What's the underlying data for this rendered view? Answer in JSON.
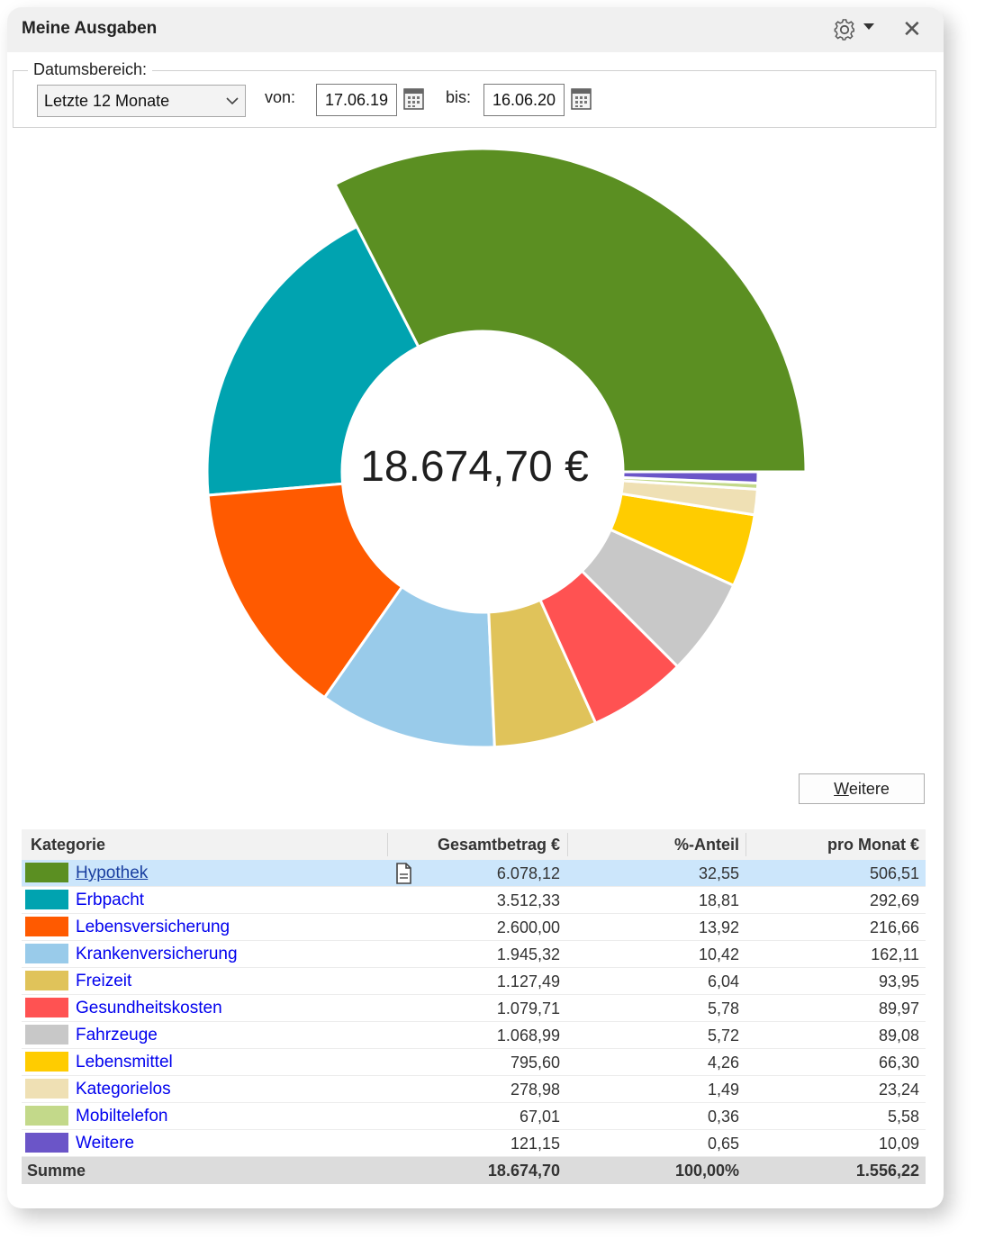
{
  "window": {
    "title": "Meine Ausgaben"
  },
  "filter": {
    "group_label": "Datumsbereich:",
    "range_value": "Letzte 12 Monate",
    "from_label": "von:",
    "from_value": "17.06.19",
    "to_label": "bis:",
    "to_value": "16.06.20"
  },
  "chart_data": {
    "type": "pie",
    "donut": true,
    "center_label": "18.674,70 €",
    "categories": [
      "Hypothek",
      "Erbpacht",
      "Lebensversicherung",
      "Krankenversicherung",
      "Freizeit",
      "Gesundheitskosten",
      "Fahrzeuge",
      "Lebensmittel",
      "Kategorielos",
      "Mobiltelefon",
      "Weitere"
    ],
    "values": [
      6078.12,
      3512.33,
      2600.0,
      1945.32,
      1127.49,
      1079.71,
      1068.99,
      795.6,
      278.98,
      67.01,
      121.15
    ],
    "colors": [
      "#5b8f22",
      "#00a3b0",
      "#ff5a00",
      "#99cbea",
      "#e0c35a",
      "#ff5252",
      "#c8c8c8",
      "#ffcc00",
      "#efe0b4",
      "#c3d98a",
      "#6b55c8"
    ],
    "highlighted": "Hypothek"
  },
  "more_button": {
    "label": "Weitere",
    "underline_char": "W"
  },
  "table": {
    "headers": [
      "Kategorie",
      "Gesamtbetrag €",
      "%-Anteil",
      "pro Monat €"
    ],
    "rows": [
      {
        "category": "Hypothek",
        "color": "#5b8f22",
        "total": "6.078,12",
        "percent": "32,55",
        "monthly": "506,51",
        "selected": true
      },
      {
        "category": "Erbpacht",
        "color": "#00a3b0",
        "total": "3.512,33",
        "percent": "18,81",
        "monthly": "292,69"
      },
      {
        "category": "Lebensversicherung",
        "color": "#ff5a00",
        "total": "2.600,00",
        "percent": "13,92",
        "monthly": "216,66"
      },
      {
        "category": "Krankenversicherung",
        "color": "#99cbea",
        "total": "1.945,32",
        "percent": "10,42",
        "monthly": "162,11"
      },
      {
        "category": "Freizeit",
        "color": "#e0c35a",
        "total": "1.127,49",
        "percent": "6,04",
        "monthly": "93,95"
      },
      {
        "category": "Gesundheitskosten",
        "color": "#ff5252",
        "total": "1.079,71",
        "percent": "5,78",
        "monthly": "89,97"
      },
      {
        "category": "Fahrzeuge",
        "color": "#c8c8c8",
        "total": "1.068,99",
        "percent": "5,72",
        "monthly": "89,08"
      },
      {
        "category": "Lebensmittel",
        "color": "#ffcc00",
        "total": "795,60",
        "percent": "4,26",
        "monthly": "66,30"
      },
      {
        "category": "Kategorielos",
        "color": "#efe0b4",
        "total": "278,98",
        "percent": "1,49",
        "monthly": "23,24"
      },
      {
        "category": "Mobiltelefon",
        "color": "#c3d98a",
        "total": "67,01",
        "percent": "0,36",
        "monthly": "5,58"
      },
      {
        "category": "Weitere",
        "color": "#6b55c8",
        "total": "121,15",
        "percent": "0,65",
        "monthly": "10,09"
      }
    ],
    "sum": {
      "label": "Summe",
      "total": "18.674,70",
      "percent": "100,00%",
      "monthly": "1.556,22"
    }
  }
}
